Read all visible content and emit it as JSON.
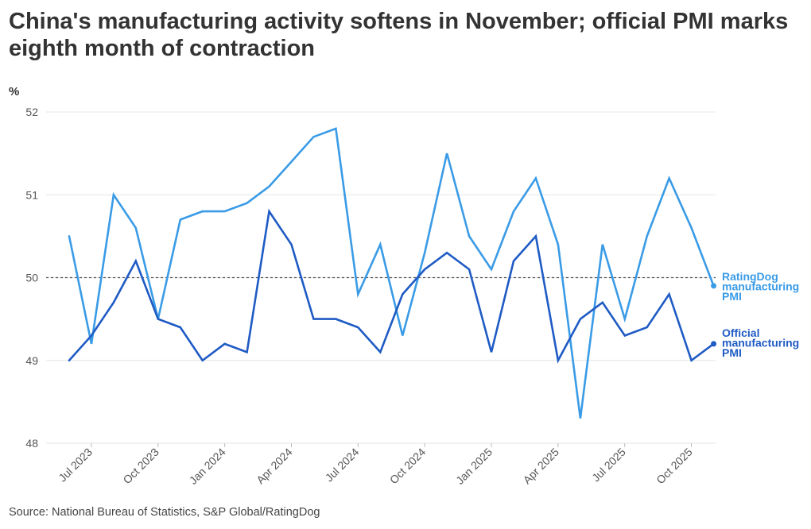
{
  "title": "China's manufacturing activity softens in November; official PMI marks eighth month of contraction",
  "source": "Source: National Bureau of Statistics, S&P Global/RatingDog",
  "colors": {
    "official": "#1f5bc4",
    "ratingdog": "#3a9be6",
    "grid": "#e6e6e6",
    "reference": "#555555"
  },
  "chart_data": {
    "type": "line",
    "title": "China's manufacturing activity softens in November; official PMI marks eighth month of contraction",
    "xlabel": "",
    "ylabel": "%",
    "ylim": [
      48,
      52
    ],
    "yticks": [
      "48",
      "49",
      "50",
      "51",
      "52"
    ],
    "reference_line": 50,
    "x_start": "2023-06",
    "x_end": "2025-11",
    "xtick_labels": [
      {
        "label": "Jul 2023",
        "index": 1
      },
      {
        "label": "Oct 2023",
        "index": 4
      },
      {
        "label": "Jan 2024",
        "index": 7
      },
      {
        "label": "Apr 2024",
        "index": 10
      },
      {
        "label": "Jul 2024",
        "index": 13
      },
      {
        "label": "Oct 2024",
        "index": 16
      },
      {
        "label": "Jan 2025",
        "index": 19
      },
      {
        "label": "Apr 2025",
        "index": 22
      },
      {
        "label": "Jul 2025",
        "index": 25
      },
      {
        "label": "Oct 2025",
        "index": 28
      }
    ],
    "series": [
      {
        "key": "ratingdog",
        "name": "RatingDog manufacturing PMI",
        "legend_lines": [
          "RatingDog",
          "manufacturing",
          "PMI"
        ],
        "values": [
          50.5,
          49.2,
          51.0,
          50.6,
          49.5,
          50.7,
          50.8,
          50.8,
          50.9,
          51.1,
          51.4,
          51.7,
          51.8,
          49.8,
          50.4,
          49.3,
          50.3,
          51.5,
          50.5,
          50.1,
          50.8,
          51.2,
          50.4,
          48.3,
          50.4,
          49.5,
          50.5,
          51.2,
          50.6,
          49.9
        ]
      },
      {
        "key": "official",
        "name": "Official manufacturing PMI",
        "legend_lines": [
          "Official",
          "manufacturing",
          "PMI"
        ],
        "values": [
          49.0,
          49.3,
          49.7,
          50.2,
          49.5,
          49.4,
          49.0,
          49.2,
          49.1,
          50.8,
          50.4,
          49.5,
          49.5,
          49.4,
          49.1,
          49.8,
          50.1,
          50.3,
          50.1,
          49.1,
          50.2,
          50.5,
          49.0,
          49.5,
          49.7,
          49.3,
          49.4,
          49.8,
          49.0,
          49.2
        ]
      }
    ]
  }
}
